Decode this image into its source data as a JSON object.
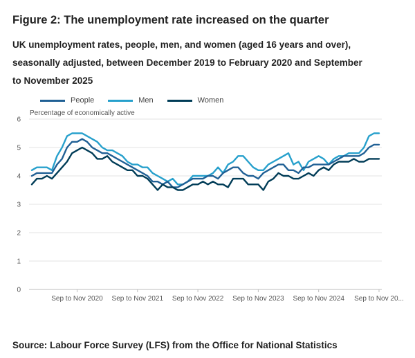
{
  "title": "Figure 2: The unemployment rate increased on the quarter",
  "subtitle": "UK unemployment rates, people, men, and women (aged 16 years and over), seasonally adjusted, between December 2019 to February 2020 and September to November 2025",
  "source": "Source: Labour Force Survey (LFS) from the Office for National Statistics",
  "chart_data": {
    "type": "line",
    "ylabel": "Percentage of economically active",
    "ylim": [
      0,
      6
    ],
    "yticks": [
      0,
      1,
      2,
      3,
      4,
      5,
      6
    ],
    "grid": true,
    "legend_position": "top-left",
    "x_tick_labels": [
      {
        "index": 9,
        "label": "Sep to Nov 2020"
      },
      {
        "index": 21,
        "label": "Sep to Nov 2021"
      },
      {
        "index": 33,
        "label": "Sep to Nov 2022"
      },
      {
        "index": 45,
        "label": "Sep to Nov 2023"
      },
      {
        "index": 57,
        "label": "Sep to Nov 2024"
      },
      {
        "index": 69,
        "label": "Sep to Nov 20..."
      }
    ],
    "series": [
      {
        "name": "People",
        "color": "#206095",
        "values": [
          4.0,
          4.1,
          4.1,
          4.1,
          4.1,
          4.4,
          4.6,
          5.0,
          5.2,
          5.2,
          5.3,
          5.2,
          5.0,
          4.9,
          4.8,
          4.8,
          4.7,
          4.6,
          4.5,
          4.4,
          4.3,
          4.2,
          4.1,
          4.0,
          3.8,
          3.8,
          3.7,
          3.8,
          3.6,
          3.6,
          3.7,
          3.8,
          3.9,
          3.9,
          3.9,
          4.0,
          4.0,
          3.9,
          4.1,
          4.2,
          4.3,
          4.3,
          4.1,
          4.0,
          4.0,
          3.9,
          4.1,
          4.2,
          4.3,
          4.4,
          4.4,
          4.2,
          4.2,
          4.1,
          4.3,
          4.3,
          4.4,
          4.4,
          4.4,
          4.4,
          4.5,
          4.6,
          4.7,
          4.7,
          4.7,
          4.7,
          4.8,
          5.0,
          5.1,
          5.1
        ]
      },
      {
        "name": "Men",
        "color": "#27a0cc",
        "values": [
          4.2,
          4.3,
          4.3,
          4.3,
          4.2,
          4.7,
          5.0,
          5.4,
          5.5,
          5.5,
          5.5,
          5.4,
          5.3,
          5.2,
          5.0,
          4.9,
          4.9,
          4.8,
          4.7,
          4.5,
          4.4,
          4.4,
          4.3,
          4.3,
          4.1,
          4.0,
          3.9,
          3.8,
          3.9,
          3.7,
          3.7,
          3.8,
          4.0,
          4.0,
          4.0,
          4.0,
          4.1,
          4.3,
          4.1,
          4.4,
          4.5,
          4.7,
          4.7,
          4.5,
          4.3,
          4.2,
          4.2,
          4.4,
          4.5,
          4.6,
          4.7,
          4.8,
          4.4,
          4.5,
          4.2,
          4.5,
          4.6,
          4.7,
          4.6,
          4.4,
          4.6,
          4.7,
          4.7,
          4.8,
          4.8,
          4.8,
          5.0,
          5.4,
          5.5,
          5.5
        ]
      },
      {
        "name": "Women",
        "color": "#003c57",
        "values": [
          3.7,
          3.9,
          3.9,
          4.0,
          3.9,
          4.1,
          4.3,
          4.5,
          4.8,
          4.9,
          5.0,
          4.9,
          4.8,
          4.6,
          4.6,
          4.7,
          4.5,
          4.4,
          4.3,
          4.2,
          4.2,
          4.0,
          4.0,
          3.9,
          3.7,
          3.5,
          3.7,
          3.6,
          3.6,
          3.5,
          3.5,
          3.6,
          3.7,
          3.7,
          3.8,
          3.7,
          3.8,
          3.7,
          3.7,
          3.6,
          3.9,
          3.9,
          3.9,
          3.7,
          3.7,
          3.7,
          3.5,
          3.8,
          3.9,
          4.1,
          4.0,
          4.0,
          3.9,
          3.9,
          4.0,
          4.1,
          4.0,
          4.2,
          4.3,
          4.2,
          4.4,
          4.5,
          4.5,
          4.5,
          4.6,
          4.5,
          4.5,
          4.6,
          4.6,
          4.6
        ]
      }
    ]
  }
}
